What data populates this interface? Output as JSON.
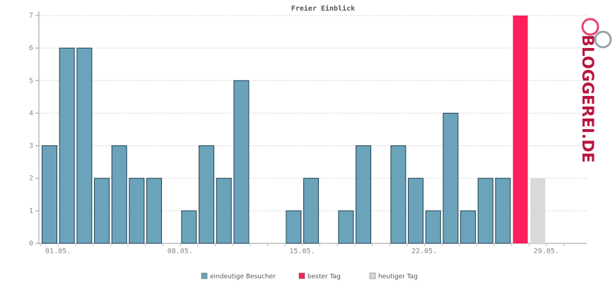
{
  "chart_data": {
    "type": "bar",
    "title": "Freier Einblick",
    "categories": [
      "01.05.",
      null,
      null,
      null,
      null,
      null,
      null,
      "08.05.",
      null,
      null,
      null,
      null,
      null,
      null,
      "15.05.",
      null,
      null,
      null,
      null,
      null,
      null,
      "22.05.",
      null,
      null,
      null,
      null,
      null,
      null,
      "29.05.",
      null,
      null
    ],
    "series": [
      {
        "name": "eindeutige Besucher",
        "color": "#6ba3bb",
        "values": [
          3,
          6,
          6,
          2,
          3,
          2,
          2,
          0,
          1,
          3,
          2,
          5,
          0,
          0,
          1,
          2,
          0,
          1,
          3,
          0,
          3,
          2,
          1,
          4,
          1,
          2,
          2,
          null,
          null,
          0,
          0
        ]
      },
      {
        "name": "bester Tag",
        "color": "#ff1f5a",
        "values": [
          null,
          null,
          null,
          null,
          null,
          null,
          null,
          null,
          null,
          null,
          null,
          null,
          null,
          null,
          null,
          null,
          null,
          null,
          null,
          null,
          null,
          null,
          null,
          null,
          null,
          null,
          null,
          7,
          null,
          null,
          null
        ]
      },
      {
        "name": "heutiger Tag",
        "color": "#d9d9d9",
        "values": [
          null,
          null,
          null,
          null,
          null,
          null,
          null,
          null,
          null,
          null,
          null,
          null,
          null,
          null,
          null,
          null,
          null,
          null,
          null,
          null,
          null,
          null,
          null,
          null,
          null,
          null,
          null,
          null,
          2,
          null,
          null
        ]
      }
    ],
    "ylim": [
      0,
      7
    ],
    "yticks": [
      0,
      1,
      2,
      3,
      4,
      5,
      6,
      7
    ],
    "grid": true,
    "logo": "BLOGGEREI.DE"
  }
}
